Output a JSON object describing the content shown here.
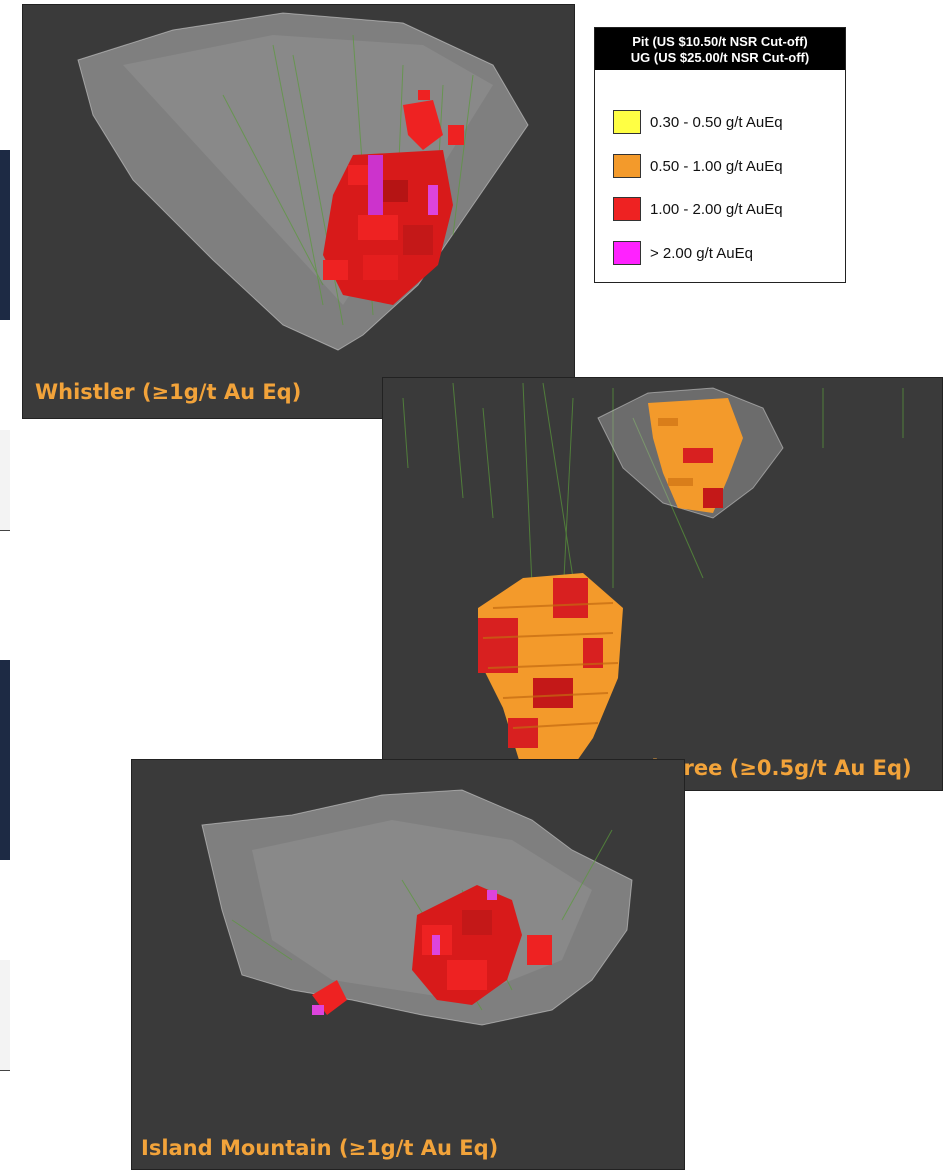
{
  "legend": {
    "header_line1": "Pit (US $10.50/t NSR Cut-off)",
    "header_line2": "UG (US $25.00/t NSR Cut-off)",
    "items": [
      {
        "label": "0.30 - 0.50 g/t AuEq",
        "color": "#ffff44"
      },
      {
        "label": "0.50 - 1.00 g/t AuEq",
        "color": "#f39a2b"
      },
      {
        "label": "1.00 - 2.00 g/t AuEq",
        "color": "#ee2222"
      },
      {
        "label": "> 2.00 g/t AuEq",
        "color": "#ff22ff"
      }
    ]
  },
  "panels": {
    "whistler": {
      "caption": "Whistler (≥1g/t Au Eq)"
    },
    "raintree": {
      "caption": "Raintree (≥0.5g/t Au Eq)"
    },
    "island_mountain": {
      "caption": "Island Mountain (≥1g/t Au Eq)"
    }
  },
  "colors": {
    "background": "#3a3a3a",
    "pit_shell": "#b8b8b8",
    "caption": "#f2a33a",
    "drillhole": "#5a9a3a"
  }
}
